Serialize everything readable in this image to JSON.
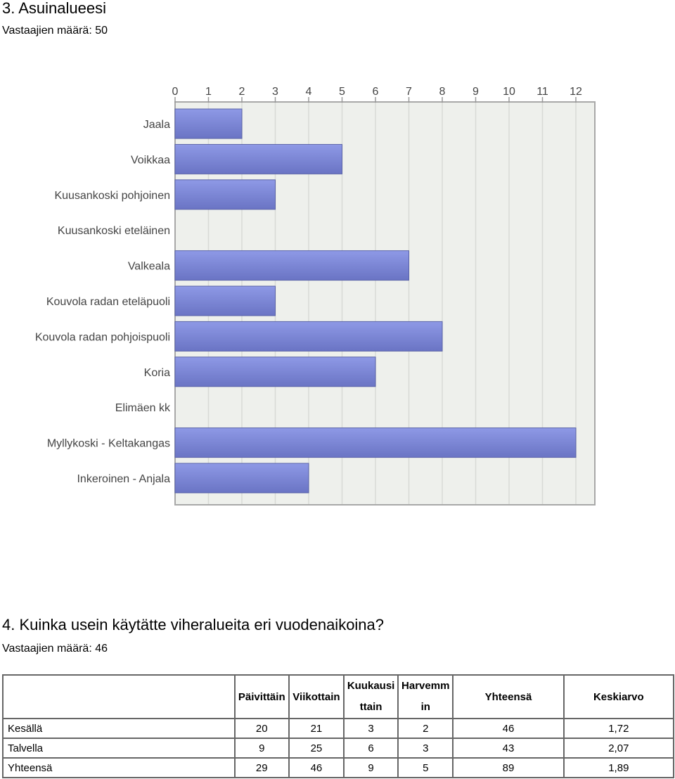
{
  "q3": {
    "title": "3. Asuinalueesi",
    "respondents": "Vastaajien määrä: 50"
  },
  "chart_data": {
    "type": "bar",
    "orientation": "horizontal",
    "categories": [
      "Jaala",
      "Voikkaa",
      "Kuusankoski pohjoinen",
      "Kuusankoski eteläinen",
      "Valkeala",
      "Kouvola radan eteläpuoli",
      "Kouvola radan pohjoispuoli",
      "Koria",
      "Elimäen kk",
      "Myllykoski - Keltakangas",
      "Inkeroinen - Anjala"
    ],
    "values": [
      2,
      5,
      3,
      0,
      7,
      3,
      8,
      6,
      0,
      12,
      4
    ],
    "xticks": [
      "0",
      "1",
      "2",
      "3",
      "4",
      "5",
      "6",
      "7",
      "8",
      "9",
      "10",
      "11",
      "12"
    ],
    "xlim": [
      0,
      12
    ],
    "axis_position": "top",
    "grid": true,
    "bar_color": "#7f8ad8",
    "plot_background": "#eef0ec"
  },
  "q4": {
    "title": "4. Kuinka usein käytätte viheralueita eri vuodenaikoina?",
    "respondents": "Vastaajien määrä: 46",
    "columns": [
      {
        "lines": [
          "Päivittäin"
        ]
      },
      {
        "lines": [
          "Viikottain"
        ]
      },
      {
        "lines": [
          "Kuukausi",
          "ttain"
        ]
      },
      {
        "lines": [
          "Harvemm",
          "in"
        ]
      },
      {
        "lines": [
          "Yhteensä"
        ]
      },
      {
        "lines": [
          "Keskiarvo"
        ]
      }
    ],
    "rows": [
      {
        "label": "Kesällä",
        "cells": [
          "20",
          "21",
          "3",
          "2",
          "46",
          "1,72"
        ]
      },
      {
        "label": "Talvella",
        "cells": [
          "9",
          "25",
          "6",
          "3",
          "43",
          "2,07"
        ]
      },
      {
        "label": "Yhteensä",
        "cells": [
          "29",
          "46",
          "9",
          "5",
          "89",
          "1,89"
        ]
      }
    ]
  }
}
